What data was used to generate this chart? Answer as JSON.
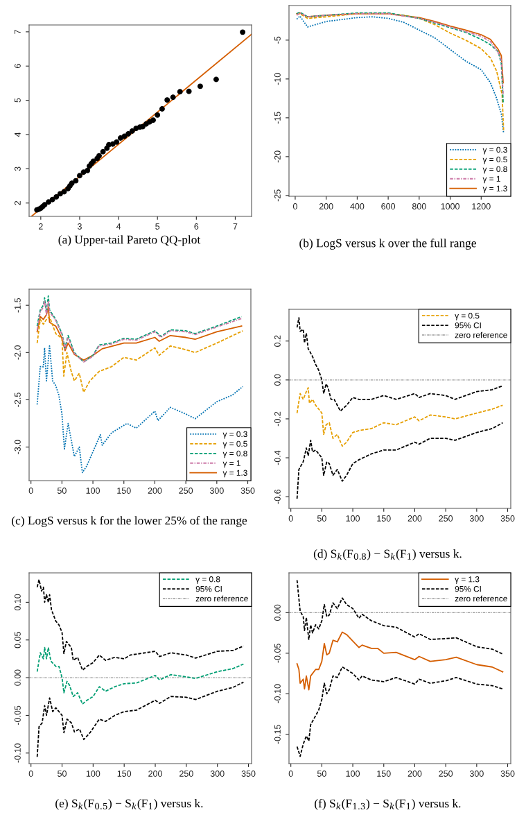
{
  "chart_data": [
    {
      "type": "scatter",
      "xlim": [
        1.7,
        7.42
      ],
      "ylim": [
        1.61,
        7.2
      ],
      "xticks": [
        2,
        3,
        4,
        5,
        6,
        7
      ],
      "yticks": [
        2,
        3,
        4,
        5,
        6,
        7
      ],
      "x": [
        1.9,
        1.95,
        2.0,
        2.05,
        2.1,
        2.2,
        2.3,
        2.4,
        2.5,
        2.6,
        2.7,
        2.75,
        2.8,
        2.9,
        3.0,
        3.1,
        3.2,
        3.25,
        3.3,
        3.35,
        3.45,
        3.5,
        3.6,
        3.7,
        3.75,
        3.85,
        3.95,
        4.05,
        4.15,
        4.25,
        4.35,
        4.45,
        4.55,
        4.62,
        4.71,
        4.8,
        4.89,
        5.0,
        5.12,
        5.25,
        5.4,
        5.58,
        5.81,
        6.1,
        6.51,
        7.19
      ],
      "series": [
        {
          "type": "scatter",
          "marker": "circle",
          "color": "#000000",
          "values": [
            1.8,
            1.82,
            1.85,
            1.9,
            1.95,
            2.03,
            2.1,
            2.18,
            2.27,
            2.33,
            2.42,
            2.5,
            2.58,
            2.65,
            2.8,
            2.9,
            2.95,
            3.08,
            3.15,
            3.22,
            3.3,
            3.38,
            3.5,
            3.6,
            3.7,
            3.72,
            3.78,
            3.9,
            3.95,
            4.02,
            4.1,
            4.18,
            4.22,
            4.23,
            4.31,
            4.37,
            4.42,
            4.57,
            4.75,
            5.01,
            5.09,
            5.25,
            5.26,
            5.41,
            5.61,
            6.99
          ]
        },
        {
          "type": "line",
          "color": "#d55e00",
          "line_style": "solid",
          "x": [
            1.76,
            7.42
          ],
          "values": [
            1.61,
            6.93
          ]
        }
      ],
      "annotations": [
        "(a) Upper-tail Pareto QQ-plot"
      ]
    },
    {
      "type": "line",
      "xlim": [
        -40,
        1391
      ],
      "ylim": [
        -25.1,
        -0.55
      ],
      "xticks": [
        0,
        200,
        400,
        600,
        800,
        1000,
        1200
      ],
      "yticks": [
        -25,
        -20,
        -15,
        -10,
        -5
      ],
      "legend": "bottom right",
      "series": [
        {
          "name": "γ = 0.3",
          "color": "#0072b2",
          "line_style": "dotted",
          "x": [
            10,
            30,
            80,
            200,
            400,
            500,
            600,
            700,
            800,
            900,
            1000,
            1100,
            1200,
            1260,
            1300,
            1330,
            1345
          ],
          "values": [
            -2.3,
            -1.9,
            -3.3,
            -2.6,
            -2.1,
            -2.0,
            -2.2,
            -2.7,
            -3.7,
            -4.7,
            -6.2,
            -7.7,
            -8.8,
            -10.5,
            -12.5,
            -14.5,
            -17
          ]
        },
        {
          "name": "γ = 0.5",
          "color": "#e69f00",
          "line_style": "dashed",
          "x": [
            10,
            30,
            80,
            200,
            400,
            600,
            700,
            800,
            900,
            1000,
            1100,
            1200,
            1260,
            1300,
            1335,
            1345
          ],
          "values": [
            -1.7,
            -1.6,
            -2.2,
            -2.0,
            -1.6,
            -1.6,
            -1.8,
            -2.2,
            -3.0,
            -4.1,
            -5.0,
            -6.1,
            -7.3,
            -9.0,
            -12,
            -16.7
          ]
        },
        {
          "name": "γ = 0.8",
          "color": "#009e73",
          "line_style": "dashed",
          "x": [
            10,
            30,
            80,
            200,
            400,
            600,
            800,
            900,
            1000,
            1100,
            1200,
            1260,
            1310,
            1330,
            1342
          ],
          "values": [
            -1.6,
            -1.4,
            -2.0,
            -1.8,
            -1.5,
            -1.5,
            -2.2,
            -2.8,
            -3.4,
            -4.0,
            -4.9,
            -5.6,
            -6.5,
            -8.0,
            -13
          ]
        },
        {
          "name": "γ = 1",
          "color": "#cc79a7",
          "line_style": "dashdot",
          "x": [
            10,
            30,
            80,
            200,
            400,
            600,
            800,
            900,
            1000,
            1100,
            1200,
            1260,
            1310,
            1330,
            1342
          ],
          "values": [
            -1.8,
            -1.5,
            -2.0,
            -1.8,
            -1.6,
            -1.6,
            -2.2,
            -2.7,
            -3.3,
            -3.9,
            -4.5,
            -5.2,
            -6.6,
            -7.6,
            -12
          ]
        },
        {
          "name": "γ = 1.3",
          "color": "#d55e00",
          "line_style": "solid",
          "x": [
            10,
            30,
            80,
            200,
            400,
            600,
            800,
            900,
            1000,
            1100,
            1200,
            1260,
            1310,
            1330,
            1342
          ],
          "values": [
            -1.6,
            -1.5,
            -2.0,
            -1.8,
            -1.6,
            -1.6,
            -2.1,
            -2.6,
            -3.2,
            -3.7,
            -4.3,
            -4.9,
            -6.2,
            -7.0,
            -10.5
          ]
        }
      ],
      "annotations": [
        "(b) LogS versus k over the full range"
      ]
    },
    {
      "type": "line",
      "xlim": [
        -3,
        355
      ],
      "ylim": [
        -3.355,
        -1.33
      ],
      "xticks": [
        0,
        50,
        100,
        150,
        200,
        250,
        300,
        350
      ],
      "yticks": [
        {
          "value": -3,
          "label": "-3.0"
        },
        -2.5,
        {
          "value": -2,
          "label": "-2.0"
        },
        -1.5
      ],
      "legend": "bottom right",
      "series": [
        {
          "name": "γ = 0.3",
          "color": "#0072b2",
          "line_style": "dotted",
          "x": [
            10,
            15,
            20,
            22,
            25,
            30,
            35,
            40,
            45,
            50,
            54,
            60,
            70,
            78,
            83,
            90,
            100,
            112,
            115,
            130,
            155,
            170,
            200,
            205,
            225,
            250,
            265,
            300,
            325,
            342
          ],
          "values": [
            -2.55,
            -2.15,
            -2.15,
            -1.95,
            -2.3,
            -1.93,
            -2.3,
            -2.35,
            -2.45,
            -2.65,
            -3.02,
            -2.75,
            -3.1,
            -3.0,
            -3.27,
            -3.2,
            -3.05,
            -2.87,
            -2.98,
            -2.85,
            -2.75,
            -2.8,
            -2.62,
            -2.72,
            -2.58,
            -2.65,
            -2.7,
            -2.52,
            -2.45,
            -2.36
          ]
        },
        {
          "name": "γ = 0.5",
          "color": "#e69f00",
          "line_style": "dashed",
          "x": [
            10,
            15,
            20,
            25,
            30,
            40,
            50,
            53,
            58,
            65,
            70,
            78,
            85,
            95,
            110,
            130,
            150,
            170,
            200,
            207,
            225,
            250,
            265,
            300,
            342
          ],
          "values": [
            -1.9,
            -1.65,
            -1.7,
            -1.65,
            -1.62,
            -1.8,
            -1.85,
            -2.25,
            -2.0,
            -2.2,
            -2.3,
            -2.22,
            -2.42,
            -2.3,
            -2.2,
            -2.15,
            -2.05,
            -2.08,
            -1.95,
            -2.03,
            -1.93,
            -1.97,
            -2.0,
            -1.9,
            -1.77
          ]
        },
        {
          "name": "γ = 0.8",
          "color": "#009e73",
          "line_style": "dashed",
          "x": [
            10,
            15,
            20,
            22,
            25,
            28,
            30,
            40,
            50,
            55,
            60,
            70,
            85,
            100,
            110,
            130,
            150,
            170,
            200,
            210,
            225,
            250,
            265,
            300,
            340
          ],
          "values": [
            -1.72,
            -1.55,
            -1.5,
            -1.42,
            -1.58,
            -1.4,
            -1.55,
            -1.65,
            -1.8,
            -1.95,
            -1.82,
            -2.0,
            -2.1,
            -2.03,
            -1.92,
            -1.9,
            -1.85,
            -1.86,
            -1.77,
            -1.83,
            -1.76,
            -1.77,
            -1.8,
            -1.72,
            -1.62
          ]
        },
        {
          "name": "γ = 1",
          "color": "#cc79a7",
          "line_style": "dashdot",
          "x": [
            10,
            15,
            20,
            22,
            25,
            28,
            30,
            40,
            50,
            55,
            60,
            70,
            85,
            100,
            110,
            130,
            150,
            170,
            200,
            210,
            225,
            250,
            265,
            300,
            340
          ],
          "values": [
            -1.76,
            -1.57,
            -1.52,
            -1.45,
            -1.6,
            -1.45,
            -1.57,
            -1.66,
            -1.81,
            -1.96,
            -1.84,
            -2.01,
            -2.1,
            -2.04,
            -1.93,
            -1.91,
            -1.86,
            -1.87,
            -1.78,
            -1.84,
            -1.77,
            -1.78,
            -1.81,
            -1.73,
            -1.64
          ]
        },
        {
          "name": "γ = 1.3",
          "color": "#d55e00",
          "line_style": "solid",
          "x": [
            10,
            15,
            20,
            25,
            28,
            30,
            40,
            50,
            55,
            60,
            70,
            85,
            100,
            115,
            150,
            170,
            200,
            207,
            225,
            250,
            265,
            300,
            340
          ],
          "values": [
            -1.78,
            -1.62,
            -1.65,
            -1.6,
            -1.52,
            -1.68,
            -1.72,
            -1.85,
            -1.98,
            -1.9,
            -2.02,
            -2.08,
            -2.03,
            -1.96,
            -1.9,
            -1.9,
            -1.84,
            -1.88,
            -1.82,
            -1.84,
            -1.86,
            -1.78,
            -1.72
          ]
        }
      ],
      "annotations": [
        "(c) LogS versus k for the lower 25% of the range"
      ]
    },
    {
      "type": "line",
      "xlim": [
        -3,
        355
      ],
      "ylim": [
        -0.66,
        0.363
      ],
      "xticks": [
        0,
        50,
        100,
        150,
        200,
        250,
        300,
        350
      ],
      "yticks": [
        -0.6,
        -0.4,
        -0.2,
        {
          "value": 0,
          "label": "0.0"
        },
        0.2
      ],
      "legend": "top right",
      "series": [
        {
          "name": "γ = 0.5",
          "color": "#e69f00",
          "line_style": "dashed",
          "x": [
            10,
            15,
            20,
            25,
            28,
            30,
            35,
            40,
            50,
            53,
            57,
            62,
            68,
            75,
            83,
            90,
            100,
            110,
            130,
            150,
            170,
            200,
            207,
            225,
            250,
            265,
            300,
            325,
            342
          ],
          "values": [
            -0.17,
            -0.07,
            -0.1,
            -0.06,
            -0.04,
            -0.12,
            -0.1,
            -0.13,
            -0.17,
            -0.28,
            -0.23,
            -0.22,
            -0.3,
            -0.28,
            -0.34,
            -0.32,
            -0.27,
            -0.26,
            -0.25,
            -0.22,
            -0.23,
            -0.19,
            -0.21,
            -0.18,
            -0.19,
            -0.2,
            -0.17,
            -0.15,
            -0.13
          ]
        },
        {
          "name": "95% CI",
          "color": "#000000",
          "line_style": "dashed",
          "x": [
            10,
            13,
            15,
            20,
            22,
            25,
            28,
            30,
            35,
            40,
            45,
            50,
            53,
            57,
            60,
            65,
            70,
            80,
            90,
            100,
            110,
            130,
            150,
            170,
            200,
            207,
            225,
            250,
            265,
            300,
            325,
            342
          ],
          "values": [
            0.27,
            0.32,
            0.25,
            0.26,
            0.19,
            0.24,
            0.16,
            0.15,
            0.12,
            0.08,
            0.05,
            0.0,
            -0.07,
            -0.02,
            -0.04,
            -0.1,
            -0.1,
            -0.16,
            -0.13,
            -0.09,
            -0.1,
            -0.1,
            -0.08,
            -0.1,
            -0.07,
            -0.09,
            -0.07,
            -0.08,
            -0.1,
            -0.06,
            -0.05,
            -0.03
          ]
        },
        {
          "color": "#000000",
          "line_style": "dashed",
          "x": [
            10,
            13,
            20,
            25,
            28,
            32,
            35,
            40,
            50,
            53,
            58,
            62,
            68,
            75,
            83,
            90,
            100,
            110,
            130,
            150,
            170,
            200,
            207,
            225,
            250,
            265,
            300,
            325,
            342
          ],
          "values": [
            -0.61,
            -0.46,
            -0.42,
            -0.35,
            -0.39,
            -0.31,
            -0.37,
            -0.36,
            -0.4,
            -0.49,
            -0.42,
            -0.43,
            -0.49,
            -0.46,
            -0.52,
            -0.49,
            -0.43,
            -0.41,
            -0.38,
            -0.36,
            -0.36,
            -0.32,
            -0.33,
            -0.3,
            -0.3,
            -0.31,
            -0.27,
            -0.25,
            -0.22
          ]
        }
      ],
      "ref_lines": [
        {
          "axis": "y",
          "value": 0,
          "label": "zero reference",
          "color": "#999999",
          "line_style": "dashdot"
        }
      ],
      "annotations": [
        "(d) S$_{k}$(F$_{0.8}$) − S$_{k}$(F$_{1}$) versus k."
      ]
    },
    {
      "type": "line",
      "xlim": [
        -3,
        355
      ],
      "ylim": [
        -0.114,
        0.139
      ],
      "xticks": [
        0,
        50,
        100,
        150,
        200,
        250,
        300,
        350
      ],
      "yticks": [
        {
          "value": -0.1,
          "label": "-0.10"
        },
        -0.05,
        {
          "value": 0,
          "label": "0.00"
        },
        0.05,
        {
          "value": 0.1,
          "label": "0.10"
        }
      ],
      "legend": "top right",
      "series": [
        {
          "name": "γ = 0.8",
          "color": "#009e73",
          "line_style": "dashed",
          "x": [
            10,
            15,
            20,
            22,
            25,
            28,
            32,
            40,
            45,
            50,
            53,
            58,
            62,
            68,
            75,
            83,
            90,
            100,
            110,
            120,
            135,
            150,
            170,
            200,
            207,
            225,
            250,
            265,
            300,
            325,
            342
          ],
          "values": [
            0.008,
            0.033,
            0.025,
            0.04,
            0.025,
            0.04,
            0.022,
            0.015,
            0.015,
            0.0,
            -0.02,
            -0.005,
            -0.01,
            -0.025,
            -0.02,
            -0.035,
            -0.03,
            -0.025,
            -0.012,
            -0.018,
            -0.012,
            -0.008,
            -0.007,
            0.003,
            -0.003,
            0.004,
            0.001,
            -0.001,
            0.008,
            0.012,
            0.018
          ]
        },
        {
          "name": "95% CI",
          "color": "#000000",
          "line_style": "dashed",
          "x": [
            10,
            13,
            17,
            20,
            22,
            25,
            28,
            30,
            33,
            40,
            45,
            50,
            53,
            57,
            65,
            68,
            75,
            83,
            90,
            100,
            110,
            120,
            135,
            150,
            160,
            200,
            207,
            225,
            250,
            265,
            300,
            325,
            342
          ],
          "values": [
            0.12,
            0.13,
            0.115,
            0.12,
            0.1,
            0.11,
            0.1,
            0.11,
            0.09,
            0.075,
            0.07,
            0.06,
            0.032,
            0.048,
            0.04,
            0.023,
            0.027,
            0.01,
            0.015,
            0.02,
            0.03,
            0.023,
            0.027,
            0.025,
            0.03,
            0.035,
            0.028,
            0.033,
            0.03,
            0.026,
            0.035,
            0.036,
            0.042
          ]
        },
        {
          "color": "#000000",
          "line_style": "dashed",
          "x": [
            10,
            13,
            18,
            22,
            25,
            30,
            35,
            40,
            50,
            53,
            58,
            65,
            70,
            78,
            85,
            95,
            110,
            120,
            135,
            150,
            170,
            200,
            207,
            225,
            250,
            265,
            300,
            325,
            342
          ],
          "values": [
            -0.105,
            -0.065,
            -0.06,
            -0.037,
            -0.05,
            -0.027,
            -0.045,
            -0.04,
            -0.05,
            -0.073,
            -0.055,
            -0.06,
            -0.072,
            -0.068,
            -0.082,
            -0.073,
            -0.055,
            -0.058,
            -0.05,
            -0.045,
            -0.043,
            -0.03,
            -0.034,
            -0.025,
            -0.026,
            -0.029,
            -0.018,
            -0.013,
            -0.006
          ]
        }
      ],
      "ref_lines": [
        {
          "axis": "y",
          "value": 0,
          "label": "zero reference",
          "color": "#999999",
          "line_style": "dashdot"
        }
      ],
      "annotations": [
        "(e) S$_{k}$(F$_{0.5}$) − S$_{k}$(F$_{1}$) versus k."
      ]
    },
    {
      "type": "line",
      "xlim": [
        -3,
        355
      ],
      "ylim": [
        -0.186,
        0.049
      ],
      "xticks": [
        0,
        50,
        100,
        150,
        200,
        250,
        300,
        350
      ],
      "yticks": [
        -0.15,
        {
          "value": -0.1,
          "label": "-0.10"
        },
        -0.05,
        {
          "value": 0,
          "label": "0.00"
        }
      ],
      "legend": "top right",
      "series": [
        {
          "name": "γ = 1.3",
          "color": "#d55e00",
          "line_style": "solid",
          "x": [
            10,
            13,
            15,
            20,
            22,
            25,
            29,
            32,
            40,
            45,
            50,
            54,
            58,
            62,
            68,
            75,
            83,
            90,
            100,
            110,
            115,
            130,
            140,
            150,
            170,
            200,
            207,
            225,
            250,
            267,
            300,
            325,
            342
          ],
          "values": [
            -0.063,
            -0.07,
            -0.087,
            -0.082,
            -0.094,
            -0.078,
            -0.095,
            -0.078,
            -0.07,
            -0.07,
            -0.06,
            -0.038,
            -0.052,
            -0.05,
            -0.034,
            -0.036,
            -0.024,
            -0.027,
            -0.035,
            -0.043,
            -0.04,
            -0.044,
            -0.044,
            -0.05,
            -0.049,
            -0.058,
            -0.054,
            -0.06,
            -0.058,
            -0.055,
            -0.064,
            -0.067,
            -0.073
          ]
        },
        {
          "name": "95% CI",
          "color": "#000000",
          "line_style": "dashed",
          "x": [
            10,
            15,
            20,
            22,
            25,
            29,
            32,
            35,
            40,
            45,
            50,
            54,
            58,
            62,
            68,
            75,
            83,
            90,
            100,
            110,
            115,
            130,
            150,
            170,
            200,
            207,
            225,
            250,
            267,
            300,
            325,
            342
          ],
          "values": [
            0.04,
            0.002,
            -0.005,
            -0.022,
            -0.006,
            -0.033,
            -0.015,
            -0.025,
            -0.015,
            -0.02,
            -0.01,
            0.01,
            -0.005,
            -0.003,
            0.012,
            0.005,
            0.018,
            0.01,
            0.005,
            -0.007,
            -0.002,
            -0.01,
            -0.016,
            -0.018,
            -0.03,
            -0.026,
            -0.033,
            -0.032,
            -0.031,
            -0.042,
            -0.045,
            -0.051
          ]
        },
        {
          "color": "#000000",
          "line_style": "dashed",
          "x": [
            10,
            15,
            20,
            25,
            29,
            32,
            40,
            45,
            50,
            54,
            58,
            62,
            68,
            75,
            83,
            90,
            100,
            110,
            115,
            130,
            150,
            170,
            200,
            207,
            225,
            250,
            267,
            300,
            325,
            342
          ],
          "values": [
            -0.165,
            -0.177,
            -0.162,
            -0.152,
            -0.158,
            -0.138,
            -0.127,
            -0.12,
            -0.107,
            -0.087,
            -0.1,
            -0.095,
            -0.078,
            -0.08,
            -0.067,
            -0.07,
            -0.075,
            -0.083,
            -0.078,
            -0.083,
            -0.085,
            -0.08,
            -0.088,
            -0.082,
            -0.087,
            -0.084,
            -0.08,
            -0.088,
            -0.09,
            -0.094
          ]
        }
      ],
      "ref_lines": [
        {
          "axis": "y",
          "value": 0,
          "label": "zero reference",
          "color": "#999999",
          "line_style": "dashdot"
        }
      ],
      "annotations": [
        "(f) S$_{k}$(F$_{1.3}$) − S$_{k}$(F$_{1}$) versus k."
      ]
    }
  ]
}
